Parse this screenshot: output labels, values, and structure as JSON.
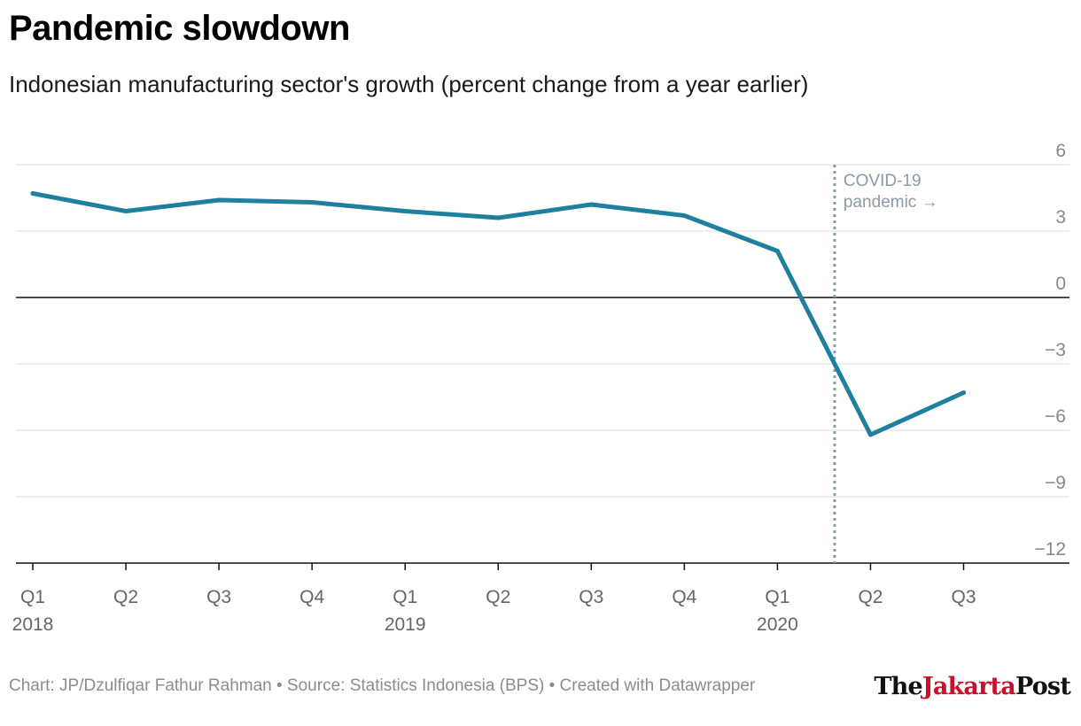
{
  "title": "Pandemic slowdown",
  "subtitle": "Indonesian manufacturing sector's growth (percent change from a year earlier)",
  "footer": "Chart: JP/Dzulfiqar Fathur Rahman • Source: Statistics Indonesia (BPS) • Created with Datawrapper",
  "logo": {
    "part1": "The",
    "part2": "Jakarta",
    "part3": "Post"
  },
  "colors": {
    "line": "#1f7f9e",
    "grid": "#dddddd",
    "zero": "#111111",
    "axis_text": "#888888",
    "annotation": "#8a9aa5"
  },
  "chart_data": {
    "type": "line",
    "title": "Pandemic slowdown",
    "subtitle": "Indonesian manufacturing sector's growth (percent change from a year earlier)",
    "categories": [
      "Q1",
      "Q2",
      "Q3",
      "Q4",
      "Q1",
      "Q2",
      "Q3",
      "Q4",
      "Q1",
      "Q2",
      "Q3"
    ],
    "year_labels": [
      "2018",
      "",
      "",
      "",
      "2019",
      "",
      "",
      "",
      "2020",
      "",
      ""
    ],
    "series": [
      {
        "values": [
          4.7,
          3.9,
          4.4,
          4.3,
          3.9,
          3.6,
          4.2,
          3.7,
          2.1,
          -6.2,
          -4.3
        ]
      }
    ],
    "ylim": [
      -12,
      6
    ],
    "yticks": [
      6,
      3,
      0,
      -3,
      -6,
      -9,
      -12
    ],
    "ytick_labels": [
      "6",
      "3",
      "0",
      "−3",
      "−6",
      "−9",
      "−12"
    ],
    "grid": true,
    "annotation": {
      "line1": "COVID-19",
      "line2": "pandemic →",
      "position_between_index": [
        8,
        9
      ]
    }
  }
}
